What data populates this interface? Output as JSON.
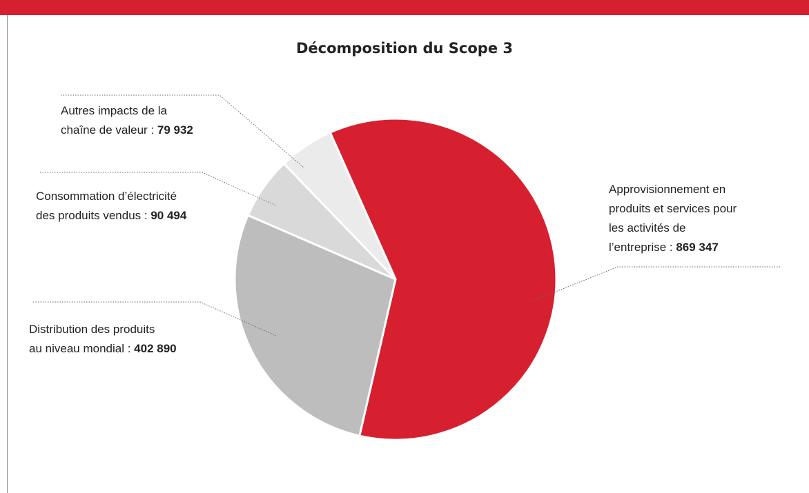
{
  "chart_data": {
    "type": "pie",
    "title": "Décomposition du Scope 3",
    "categories": [
      "Approvisionnement en\nproduits et services pour\nles activités de\nl’entreprise :",
      "Distribution des produits\nau niveau mondial :",
      "Consommation d’électricité\ndes produits vendus :",
      "Autres impacts de la\nchaîne de valeur :"
    ],
    "values": [
      869347,
      402890,
      90494,
      79932
    ],
    "value_labels": [
      "869 347",
      "402 890",
      "90 494",
      "79 932"
    ],
    "colors": [
      "#d7202f",
      "#bdbdbd",
      "#d9d9d9",
      "#ebebeb"
    ]
  }
}
